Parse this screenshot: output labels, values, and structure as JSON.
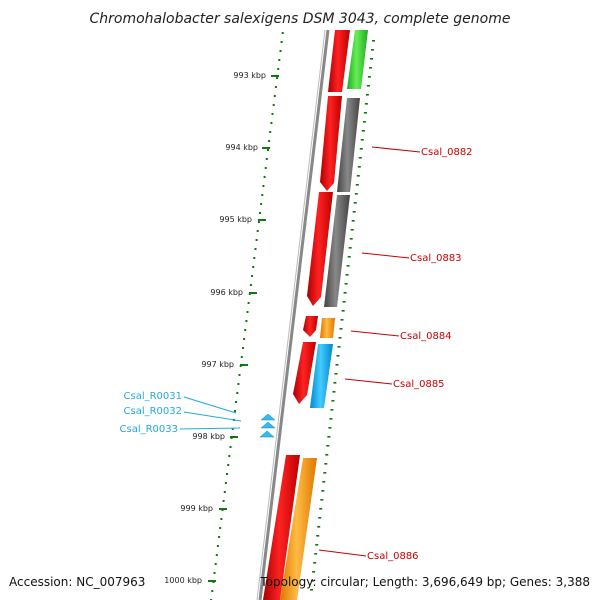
{
  "title": "Chromohalobacter salexigens DSM 3043, complete genome",
  "accession_text": "Accession: NC_007963",
  "summary_text": "Topology: circular; Length: 3,696,649 bp; Genes: 3,388",
  "ticks": [
    {
      "label": "993 kbp",
      "kbp": 993
    },
    {
      "label": "994 kbp",
      "kbp": 994
    },
    {
      "label": "995 kbp",
      "kbp": 995
    },
    {
      "label": "996 kbp",
      "kbp": 996
    },
    {
      "label": "997 kbp",
      "kbp": 997
    },
    {
      "label": "998 kbp",
      "kbp": 998
    },
    {
      "label": "999 kbp",
      "kbp": 999
    },
    {
      "label": "1000 kbp",
      "kbp": 1000
    }
  ],
  "gene_labels": [
    {
      "label": "Csal_0882",
      "color": "#cc0000"
    },
    {
      "label": "Csal_0883",
      "color": "#cc0000"
    },
    {
      "label": "Csal_0884",
      "color": "#cc0000"
    },
    {
      "label": "Csal_0885",
      "color": "#cc0000"
    },
    {
      "label": "Csal_0886",
      "color": "#cc0000"
    },
    {
      "label": "Csal_R0031",
      "color": "#22aadd"
    },
    {
      "label": "Csal_R0032",
      "color": "#22aadd"
    },
    {
      "label": "Csal_R0033",
      "color": "#22aadd"
    }
  ],
  "colors": {
    "cds": "#ee1111",
    "gray_feature": "#666666",
    "green_feature": "#33cc33",
    "orange_feature": "#ff9900",
    "blue_feature": "#11aaee",
    "trna": "#33bbee",
    "tick": "#117711",
    "backbone": "#888888"
  }
}
